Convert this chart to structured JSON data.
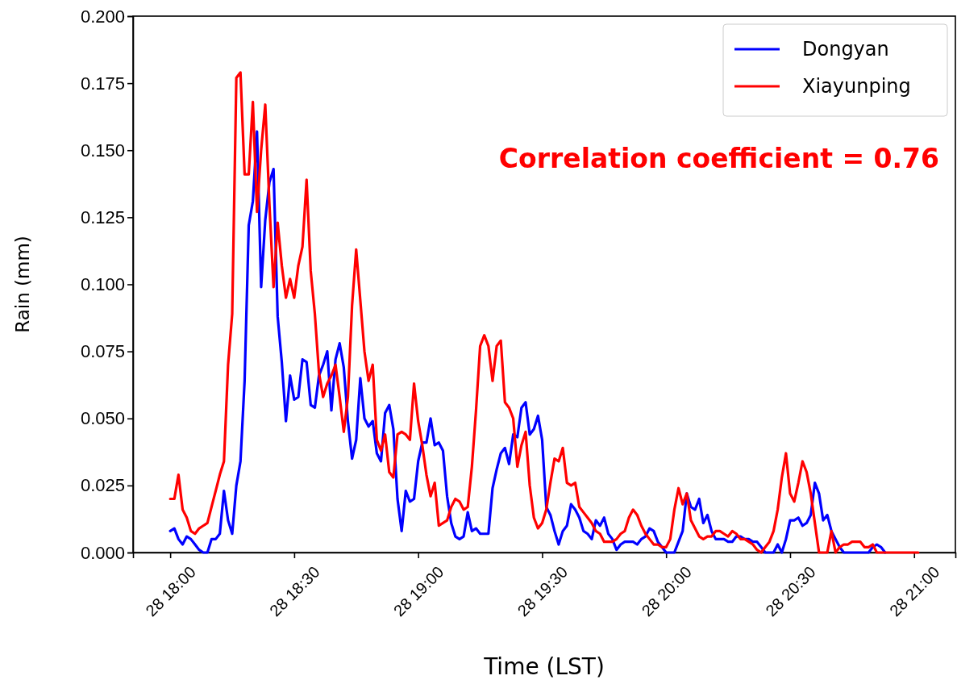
{
  "chart_data": {
    "type": "line",
    "xlabel": "Time (LST)",
    "ylabel": "Rain (mm)",
    "categories": [
      null,
      null,
      null,
      null,
      null,
      null,
      null,
      null,
      null,
      "28 18:00",
      null,
      null,
      null,
      null,
      null,
      null,
      null,
      null,
      null,
      null,
      null,
      null,
      null,
      null,
      null,
      null,
      null,
      null,
      null,
      null,
      null,
      null,
      null,
      null,
      null,
      null,
      null,
      null,
      null,
      "28 18:30",
      null,
      null,
      null,
      null,
      null,
      null,
      null,
      null,
      null,
      null,
      null,
      null,
      null,
      null,
      null,
      null,
      null,
      null,
      null,
      null,
      null,
      null,
      null,
      null,
      null,
      null,
      null,
      null,
      null,
      "28 19:00",
      null,
      null,
      null,
      null,
      null,
      null,
      null,
      null,
      null,
      null,
      null,
      null,
      null,
      null,
      null,
      null,
      null,
      null,
      null,
      null,
      null,
      null,
      null,
      null,
      null,
      null,
      null,
      null,
      null,
      "28 19:30",
      null,
      null,
      null,
      null,
      null,
      null,
      null,
      null,
      null,
      null,
      null,
      null,
      null,
      null,
      null,
      null,
      null,
      null,
      null,
      null,
      null,
      null,
      null,
      null,
      null,
      null,
      null,
      null,
      null,
      "28 20:00",
      null,
      null,
      null,
      null,
      null,
      null,
      null,
      null,
      null,
      null,
      null,
      null,
      null,
      null,
      null,
      null,
      null,
      null,
      null,
      null,
      null,
      null,
      null,
      null,
      null,
      null,
      null,
      null,
      null,
      "28 20:30",
      null,
      null,
      null,
      null,
      null,
      null,
      null,
      null,
      null,
      null,
      null,
      null,
      null,
      null,
      null,
      null,
      null,
      null,
      null,
      null,
      null,
      null,
      null,
      null,
      null,
      null,
      null,
      null,
      null,
      "28 21:00",
      null,
      null,
      null,
      null,
      null,
      null,
      null,
      null,
      null,
      null
    ],
    "ylim": [
      0,
      0.2
    ],
    "yticks": [
      {
        "value": 0,
        "label": "0.000"
      },
      {
        "value": 0.025,
        "label": "0.025"
      },
      {
        "value": 0.05,
        "label": "0.050"
      },
      {
        "value": 0.075,
        "label": "0.075"
      },
      {
        "value": 0.1,
        "label": "0.100"
      },
      {
        "value": 0.125,
        "label": "0.125"
      },
      {
        "value": 0.15,
        "label": "0.150"
      },
      {
        "value": 0.175,
        "label": "0.175"
      },
      {
        "value": 0.2,
        "label": "0.200"
      }
    ],
    "legend": "top right",
    "line_style": "solid",
    "annotations": [
      "Correlation coefficient = 0.76"
    ],
    "series": [
      {
        "name": "Dongyan",
        "color": "#0000ff",
        "values": [
          null,
          null,
          null,
          null,
          null,
          null,
          null,
          null,
          null,
          0.008,
          0.009,
          0.005,
          0.003,
          0.006,
          0.005,
          0.003,
          0.001,
          0,
          0,
          0.005,
          0.005,
          0.007,
          0.023,
          0.012,
          0.007,
          0.025,
          0.034,
          0.064,
          0.122,
          0.131,
          0.157,
          0.099,
          0.124,
          0.138,
          0.143,
          0.088,
          0.071,
          0.049,
          0.066,
          0.057,
          0.058,
          0.072,
          0.071,
          0.055,
          0.054,
          0.066,
          0.07,
          0.075,
          0.053,
          0.072,
          0.078,
          0.069,
          0.049,
          0.035,
          0.042,
          0.065,
          0.05,
          0.047,
          0.049,
          0.037,
          0.034,
          0.052,
          0.055,
          0.046,
          0.02,
          0.008,
          0.023,
          0.019,
          0.02,
          0.034,
          0.041,
          0.041,
          0.05,
          0.04,
          0.041,
          0.038,
          0.021,
          0.011,
          0.006,
          0.005,
          0.006,
          0.015,
          0.008,
          0.009,
          0.007,
          0.007,
          0.007,
          0.024,
          0.031,
          0.037,
          0.039,
          0.033,
          0.044,
          0.043,
          0.054,
          0.056,
          0.044,
          0.046,
          0.051,
          0.042,
          0.017,
          0.014,
          0.008,
          0.003,
          0.008,
          0.01,
          0.018,
          0.016,
          0.013,
          0.008,
          0.007,
          0.005,
          0.012,
          0.01,
          0.013,
          0.007,
          0.005,
          0.001,
          0.003,
          0.004,
          0.004,
          0.004,
          0.003,
          0.005,
          0.006,
          0.009,
          0.008,
          0.004,
          0.002,
          0,
          0,
          0,
          0.004,
          0.008,
          0.022,
          0.017,
          0.016,
          0.02,
          0.011,
          0.014,
          0.008,
          0.005,
          0.005,
          0.005,
          0.004,
          0.004,
          0.006,
          0.006,
          0.005,
          0.005,
          0.004,
          0.004,
          0.002,
          0,
          0,
          0,
          0.003,
          0,
          0.005,
          0.012,
          0.012,
          0.013,
          0.01,
          0.011,
          0.014,
          0.026,
          0.022,
          0.012,
          0.014,
          0.008,
          0.005,
          0.002,
          0,
          0,
          0,
          0,
          0,
          0,
          0,
          0.002,
          0.003,
          0.002,
          0,
          null,
          null,
          null,
          null,
          null,
          null,
          null,
          null,
          null,
          null,
          null,
          null,
          null,
          null,
          null,
          null,
          null
        ]
      },
      {
        "name": "Xiayunping",
        "color": "#ff0000",
        "values": [
          null,
          null,
          null,
          null,
          null,
          null,
          null,
          null,
          null,
          0.02,
          0.02,
          0.029,
          0.016,
          0.013,
          0.008,
          0.007,
          0.009,
          0.01,
          0.011,
          0.017,
          0.023,
          0.029,
          0.034,
          0.07,
          0.089,
          0.177,
          0.179,
          0.141,
          0.141,
          0.168,
          0.127,
          0.15,
          0.167,
          0.13,
          0.099,
          0.123,
          0.107,
          0.095,
          0.102,
          0.095,
          0.107,
          0.114,
          0.139,
          0.105,
          0.089,
          0.067,
          0.058,
          0.063,
          0.066,
          0.07,
          0.058,
          0.045,
          0.058,
          0.092,
          0.113,
          0.094,
          0.075,
          0.064,
          0.07,
          0.042,
          0.038,
          0.044,
          0.03,
          0.028,
          0.044,
          0.045,
          0.044,
          0.042,
          0.063,
          0.049,
          0.04,
          0.029,
          0.021,
          0.026,
          0.01,
          0.011,
          0.012,
          0.017,
          0.02,
          0.019,
          0.016,
          0.017,
          0.032,
          0.053,
          0.077,
          0.081,
          0.077,
          0.064,
          0.077,
          0.079,
          0.056,
          0.054,
          0.05,
          0.032,
          0.04,
          0.045,
          0.025,
          0.013,
          0.009,
          0.011,
          0.016,
          0.026,
          0.035,
          0.034,
          0.039,
          0.026,
          0.025,
          0.026,
          0.017,
          0.015,
          0.013,
          0.011,
          0.008,
          0.007,
          0.004,
          0.004,
          0.004,
          0.005,
          0.007,
          0.008,
          0.013,
          0.016,
          0.014,
          0.01,
          0.007,
          0.005,
          0.003,
          0.003,
          0.002,
          0.002,
          0.005,
          0.016,
          0.024,
          0.018,
          0.022,
          0.012,
          0.009,
          0.006,
          0.005,
          0.006,
          0.006,
          0.008,
          0.008,
          0.007,
          0.006,
          0.008,
          0.007,
          0.005,
          0.005,
          0.004,
          0.003,
          0.001,
          0,
          0.002,
          0.004,
          0.008,
          0.016,
          0.028,
          0.037,
          0.022,
          0.019,
          0.026,
          0.034,
          0.03,
          0.022,
          0.011,
          0,
          0,
          0,
          0.008,
          0,
          0.002,
          0.003,
          0.003,
          0.004,
          0.004,
          0.004,
          0.002,
          0.002,
          0.003,
          0,
          0,
          0,
          0,
          0,
          0,
          0,
          0,
          0,
          0,
          0,
          null,
          null,
          null,
          null,
          null,
          null,
          null,
          null,
          null
        ]
      }
    ]
  }
}
